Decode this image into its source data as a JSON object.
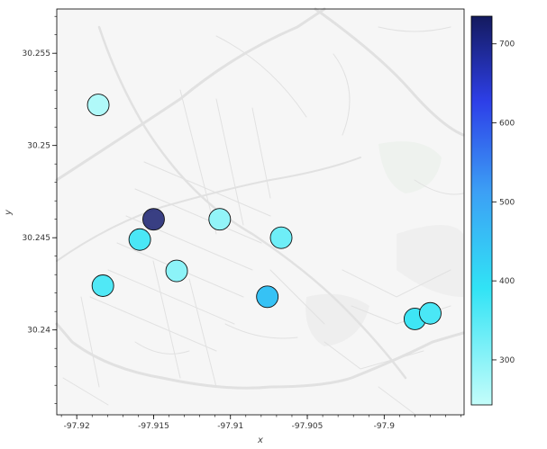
{
  "chart_data": {
    "type": "scatter",
    "title": "",
    "xlabel": "x",
    "ylabel": "y",
    "xlim": [
      -97.9213,
      -97.8948
    ],
    "ylim": [
      30.2354,
      30.2574
    ],
    "x_ticks": [
      -97.92,
      -97.915,
      -97.91,
      -97.905,
      -97.9
    ],
    "x_tick_labels": [
      "-97.92",
      "-97.915",
      "-97.91",
      "-97.905",
      "-97.9"
    ],
    "y_ticks": [
      30.24,
      30.245,
      30.25,
      30.255
    ],
    "y_tick_labels": [
      "30.24",
      "30.245",
      "30.25",
      "30.255"
    ],
    "background": "street map tiles",
    "colorbar": {
      "min": 243,
      "max": 735,
      "ticks": [
        300,
        400,
        500,
        600,
        700
      ],
      "tick_labels": [
        "300",
        "400",
        "500",
        "600",
        "700"
      ],
      "colors": [
        "#c4fdfa",
        "#31e3f5",
        "#3c9ff5",
        "#2d3fe8",
        "#141a5e"
      ]
    },
    "points": [
      {
        "x": -97.9186,
        "y": 30.2522,
        "value": 260
      },
      {
        "x": -97.915,
        "y": 30.246,
        "value": 720
      },
      {
        "x": -97.9159,
        "y": 30.2449,
        "value": 345
      },
      {
        "x": -97.9107,
        "y": 30.246,
        "value": 285
      },
      {
        "x": -97.9067,
        "y": 30.245,
        "value": 315
      },
      {
        "x": -97.9135,
        "y": 30.2432,
        "value": 290
      },
      {
        "x": -97.9183,
        "y": 30.2424,
        "value": 340
      },
      {
        "x": -97.9076,
        "y": 30.2418,
        "value": 425
      },
      {
        "x": -97.898,
        "y": 30.2406,
        "value": 355
      },
      {
        "x": -97.897,
        "y": 30.2409,
        "value": 345
      }
    ]
  }
}
